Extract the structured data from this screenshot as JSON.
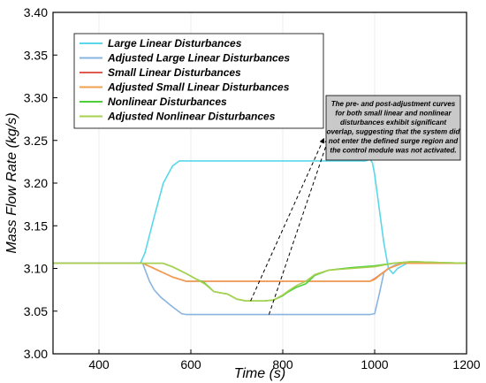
{
  "chart_data": {
    "type": "line",
    "xlabel": "Time (s)",
    "ylabel": "Mass Flow Rate (kg/s)",
    "xlim": [
      300,
      1200
    ],
    "ylim": [
      3.0,
      3.4
    ],
    "xticks": [
      400,
      600,
      800,
      1000,
      1200
    ],
    "yticks": [
      "3.00",
      "3.05",
      "3.10",
      "3.15",
      "3.20",
      "3.25",
      "3.30",
      "3.35",
      "3.40"
    ],
    "legend_position": "top-left",
    "series": [
      {
        "name": "Large Linear Disturbances",
        "color": "#5ad7e8",
        "x": [
          300,
          490,
          500,
          520,
          540,
          560,
          575,
          580,
          590,
          980,
          990,
          995,
          1000,
          1010,
          1020,
          1030,
          1040,
          1050,
          1070,
          1200
        ],
        "y": [
          3.106,
          3.106,
          3.118,
          3.16,
          3.2,
          3.22,
          3.226,
          3.226,
          3.226,
          3.226,
          3.228,
          3.224,
          3.21,
          3.17,
          3.13,
          3.1,
          3.094,
          3.1,
          3.106,
          3.106
        ]
      },
      {
        "name": "Adjusted Large Linear Disturbances",
        "color": "#8ab4e0",
        "x": [
          300,
          495,
          510,
          520,
          535,
          560,
          580,
          590,
          990,
          1000,
          1010,
          1020,
          1030,
          1045,
          1060,
          1200
        ],
        "y": [
          3.106,
          3.106,
          3.085,
          3.075,
          3.066,
          3.055,
          3.047,
          3.046,
          3.046,
          3.047,
          3.07,
          3.095,
          3.1,
          3.104,
          3.106,
          3.106
        ]
      },
      {
        "name": "Small Linear Disturbances",
        "color": "#e05a52",
        "x": [
          300,
          495,
          520,
          560,
          590,
          990,
          1000,
          1030,
          1060,
          1200
        ],
        "y": [
          3.106,
          3.106,
          3.1,
          3.09,
          3.085,
          3.085,
          3.088,
          3.1,
          3.106,
          3.106
        ]
      },
      {
        "name": "Adjusted Small Linear Disturbances",
        "color": "#f0a050",
        "x": [
          300,
          495,
          520,
          560,
          590,
          990,
          1000,
          1030,
          1060,
          1200
        ],
        "y": [
          3.106,
          3.106,
          3.1,
          3.09,
          3.085,
          3.085,
          3.087,
          3.1,
          3.106,
          3.106
        ]
      },
      {
        "name": "Nonlinear Disturbances",
        "color": "#4ecf3a",
        "x": [
          300,
          540,
          560,
          590,
          610,
          630,
          650,
          680,
          700,
          720,
          760,
          780,
          800,
          810,
          830,
          850,
          870,
          900,
          950,
          1000,
          1040,
          1080,
          1200
        ],
        "y": [
          3.106,
          3.106,
          3.102,
          3.094,
          3.088,
          3.083,
          3.073,
          3.07,
          3.064,
          3.062,
          3.062,
          3.063,
          3.068,
          3.072,
          3.078,
          3.082,
          3.092,
          3.098,
          3.101,
          3.103,
          3.106,
          3.108,
          3.106
        ]
      },
      {
        "name": "Adjusted Nonlinear Disturbances",
        "color": "#a8d050",
        "x": [
          300,
          540,
          560,
          590,
          610,
          630,
          650,
          680,
          700,
          720,
          760,
          780,
          800,
          810,
          830,
          850,
          870,
          900,
          950,
          1000,
          1040,
          1080,
          1200
        ],
        "y": [
          3.106,
          3.106,
          3.102,
          3.094,
          3.088,
          3.082,
          3.073,
          3.07,
          3.064,
          3.062,
          3.062,
          3.063,
          3.069,
          3.073,
          3.08,
          3.085,
          3.093,
          3.098,
          3.1,
          3.102,
          3.106,
          3.108,
          3.106
        ]
      }
    ],
    "annotation": {
      "lines": [
        "The pre- and post-adjustment curves",
        "for both small linear and nonlinear",
        "disturbances exhibit significant",
        "overlap, suggesting that the system did",
        "not enter the defined surge region and",
        "the control module was not activated."
      ],
      "background": "#c9c9c9",
      "arrows": [
        {
          "from": [
            730,
            3.062
          ],
          "to": [
            890,
            3.253
          ]
        },
        {
          "from": [
            770,
            3.046
          ],
          "to": [
            900,
            3.253
          ]
        }
      ]
    }
  }
}
